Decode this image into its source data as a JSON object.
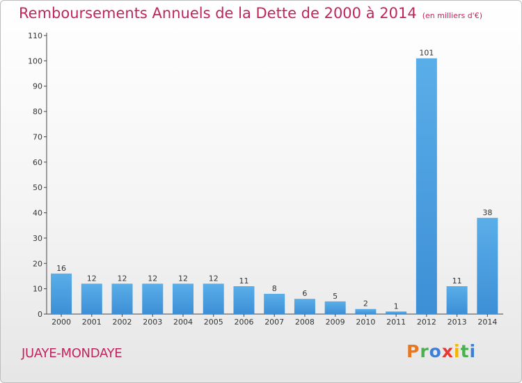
{
  "header": {
    "title": "Remboursements Annuels de la Dette de 2000 à 2014",
    "unit": "(en milliers d'€)"
  },
  "footer": {
    "place_name": "JUAYE-MONDAYE",
    "logo_text": "Proxiti"
  },
  "colors": {
    "accent": "#c0245c",
    "bar": "#3d8fd6",
    "bar_light": "#5aaee8"
  },
  "chart_data": {
    "type": "bar",
    "title": "Remboursements Annuels de la Dette de 2000 à 2014",
    "subtitle": "(en milliers d'€)",
    "categories": [
      "2000",
      "2001",
      "2002",
      "2003",
      "2004",
      "2005",
      "2006",
      "2007",
      "2008",
      "2009",
      "2010",
      "2011",
      "2012",
      "2013",
      "2014"
    ],
    "values": [
      16,
      12,
      12,
      12,
      12,
      12,
      11,
      8,
      6,
      5,
      2,
      1,
      101,
      11,
      38
    ],
    "ylim": [
      0,
      110
    ],
    "yticks": [
      0,
      10,
      20,
      30,
      40,
      50,
      60,
      70,
      80,
      90,
      100,
      110
    ],
    "grid": false,
    "legend": "none"
  }
}
